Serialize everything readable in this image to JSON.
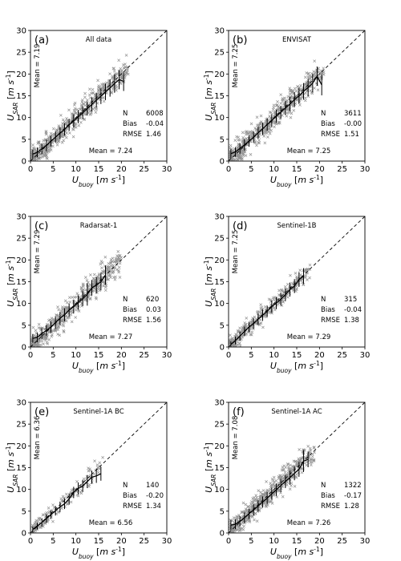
{
  "figure": {
    "x_axis_label": "U_buoy [m s^-1]",
    "y_axis_label": "U_SAR [m s^-1]",
    "x_ticks": [
      "0",
      "5",
      "10",
      "15",
      "20",
      "25",
      "30"
    ],
    "y_ticks": [
      "0",
      "5",
      "10",
      "15",
      "20",
      "25",
      "30"
    ],
    "colors": {
      "scatter": "#808080",
      "binned": "#000000",
      "identity": "#000000"
    }
  },
  "chart_data": [
    {
      "type": "scatter",
      "panel": "(a)",
      "title": "All data",
      "xlim": [
        0,
        30
      ],
      "ylim": [
        0,
        30
      ],
      "stats": {
        "n_label": "N",
        "n": "6008",
        "bias_label": "Bias",
        "bias": "-0.04",
        "rmse_label": "RMSE",
        "rmse": "1.46"
      },
      "mean_x_text": "Mean = 7.24",
      "mean_y_text": "Mean = 7.19",
      "scatter_extent": {
        "x_max": 21.5,
        "spread": 2.6
      },
      "binned": {
        "x": [
          0.5,
          1.5,
          2.5,
          3.5,
          4.5,
          5.5,
          6.5,
          7.5,
          8.5,
          9.5,
          10.5,
          11.5,
          12.5,
          13.5,
          14.5,
          15.5,
          16.5,
          17.5,
          18.5,
          19.5,
          20.5
        ],
        "y": [
          1.6,
          2.0,
          2.8,
          3.6,
          4.6,
          5.5,
          6.4,
          7.3,
          8.3,
          9.2,
          10.2,
          11.1,
          12.1,
          13.0,
          14.0,
          14.9,
          15.9,
          16.8,
          17.8,
          18.7,
          18.3
        ],
        "err": [
          1.0,
          1.1,
          1.2,
          1.3,
          1.3,
          1.3,
          1.4,
          1.4,
          1.4,
          1.5,
          1.5,
          1.5,
          1.6,
          1.6,
          1.7,
          1.8,
          1.9,
          2.0,
          2.1,
          2.2,
          2.2
        ]
      }
    },
    {
      "type": "scatter",
      "panel": "(b)",
      "title": "ENVISAT",
      "xlim": [
        0,
        30
      ],
      "ylim": [
        0,
        30
      ],
      "stats": {
        "n_label": "N",
        "n": "3611",
        "bias_label": "Bias",
        "bias": "-0.00",
        "rmse_label": "RMSE",
        "rmse": "1.51"
      },
      "mean_x_text": "Mean = 7.25",
      "mean_y_text": "Mean = 7.25",
      "scatter_extent": {
        "x_max": 21,
        "spread": 2.5
      },
      "binned": {
        "x": [
          0.5,
          1.5,
          2.5,
          3.5,
          4.5,
          5.5,
          6.5,
          7.5,
          8.5,
          9.5,
          10.5,
          11.5,
          12.5,
          13.5,
          14.5,
          15.5,
          16.5,
          17.5,
          18.5,
          19.5,
          20.5
        ],
        "y": [
          1.7,
          2.1,
          2.9,
          3.7,
          4.6,
          5.5,
          6.5,
          7.4,
          8.4,
          9.3,
          10.3,
          11.2,
          12.2,
          13.1,
          14.1,
          15.0,
          16.0,
          16.9,
          17.9,
          19.5,
          17.5
        ],
        "err": [
          1.1,
          1.1,
          1.2,
          1.3,
          1.3,
          1.3,
          1.4,
          1.4,
          1.4,
          1.5,
          1.5,
          1.5,
          1.6,
          1.6,
          1.7,
          1.8,
          1.9,
          2.0,
          2.1,
          2.2,
          2.4
        ]
      }
    },
    {
      "type": "scatter",
      "panel": "(c)",
      "title": "Radarsat-1",
      "xlim": [
        0,
        30
      ],
      "ylim": [
        0,
        30
      ],
      "stats": {
        "n_label": "N",
        "n": "620",
        "bias_label": "Bias",
        "bias": "0.03",
        "rmse_label": "RMSE",
        "rmse": "1.56"
      },
      "mean_x_text": "Mean = 7.27",
      "mean_y_text": "Mean = 7.29",
      "scatter_extent": {
        "x_max": 20,
        "spread": 2.4
      },
      "binned": {
        "x": [
          0.5,
          1.5,
          2.5,
          3.5,
          4.5,
          5.5,
          6.5,
          7.5,
          8.5,
          9.5,
          10.5,
          11.5,
          12.5,
          13.5,
          14.5,
          15.5,
          16.5
        ],
        "y": [
          2.0,
          2.2,
          3.1,
          3.8,
          4.6,
          5.6,
          6.6,
          7.4,
          8.5,
          9.3,
          10.2,
          11.1,
          12.1,
          13.6,
          14.2,
          15.0,
          16.5
        ],
        "err": [
          1.0,
          1.1,
          1.2,
          1.2,
          1.3,
          1.4,
          1.4,
          1.5,
          1.5,
          1.6,
          1.6,
          1.7,
          2.6,
          1.8,
          1.9,
          2.0,
          2.2
        ]
      }
    },
    {
      "type": "scatter",
      "panel": "(d)",
      "title": "Sentinel-1B",
      "xlim": [
        0,
        30
      ],
      "ylim": [
        0,
        30
      ],
      "stats": {
        "n_label": "N",
        "n": "315",
        "bias_label": "Bias",
        "bias": "-0.04",
        "rmse_label": "RMSE",
        "rmse": "1.38"
      },
      "mean_x_text": "Mean = 7.29",
      "mean_y_text": "Mean = 7.25",
      "scatter_extent": {
        "x_max": 18,
        "spread": 1.9
      },
      "binned": {
        "x": [
          0.5,
          1.5,
          2.5,
          3.5,
          4.5,
          5.5,
          6.5,
          7.5,
          8.5,
          9.5,
          10.5,
          11.5,
          12.5,
          13.5,
          14.5,
          15.5,
          16.5
        ],
        "y": [
          0.6,
          1.5,
          2.5,
          3.6,
          4.6,
          5.4,
          6.4,
          7.3,
          8.2,
          9.3,
          10.1,
          11.0,
          12.0,
          13.2,
          14.0,
          15.5,
          16.3
        ],
        "err": [
          0.7,
          0.9,
          1.0,
          1.1,
          1.2,
          1.2,
          1.3,
          1.3,
          1.3,
          1.4,
          1.4,
          1.5,
          1.5,
          1.6,
          1.6,
          1.7,
          1.8
        ]
      }
    },
    {
      "type": "scatter",
      "panel": "(e)",
      "title": "Sentinel-1A BC",
      "xlim": [
        0,
        30
      ],
      "ylim": [
        0,
        30
      ],
      "stats": {
        "n_label": "N",
        "n": "140",
        "bias_label": "Bias",
        "bias": "-0.20",
        "rmse_label": "RMSE",
        "rmse": "1.34"
      },
      "mean_x_text": "Mean = 6.56",
      "mean_y_text": "Mean = 6.36",
      "scatter_extent": {
        "x_max": 16,
        "spread": 1.8
      },
      "binned": {
        "x": [
          0.5,
          1.5,
          2.5,
          3.5,
          4.5,
          5.5,
          6.5,
          7.5,
          8.5,
          9.5,
          10.5,
          11.5,
          12.5,
          13.5,
          14.5,
          15.5
        ],
        "y": [
          0.8,
          1.6,
          2.4,
          3.3,
          4.2,
          5.1,
          6.0,
          6.7,
          7.8,
          9.3,
          10.2,
          10.8,
          11.8,
          12.8,
          13.1,
          13.6
        ],
        "err": [
          0.7,
          0.8,
          0.9,
          1.0,
          1.0,
          1.1,
          1.2,
          1.2,
          1.3,
          1.3,
          1.4,
          1.4,
          1.5,
          1.5,
          1.6,
          1.6
        ]
      }
    },
    {
      "type": "scatter",
      "panel": "(f)",
      "title": "Sentinel-1A AC",
      "xlim": [
        0,
        30
      ],
      "ylim": [
        0,
        30
      ],
      "stats": {
        "n_label": "N",
        "n": "1322",
        "bias_label": "Bias",
        "bias": "-0.17",
        "rmse_label": "RMSE",
        "rmse": "1.28"
      },
      "mean_x_text": "Mean = 7.26",
      "mean_y_text": "Mean = 7.08",
      "scatter_extent": {
        "x_max": 19,
        "spread": 2.3
      },
      "binned": {
        "x": [
          0.5,
          1.5,
          2.5,
          3.5,
          4.5,
          5.5,
          6.5,
          7.5,
          8.5,
          9.5,
          10.5,
          11.5,
          12.5,
          13.5,
          14.5,
          15.5,
          16.5,
          17.5
        ],
        "y": [
          1.8,
          2.0,
          2.7,
          3.5,
          4.4,
          5.3,
          6.2,
          7.1,
          8.0,
          9.0,
          9.9,
          10.9,
          11.8,
          12.7,
          13.7,
          14.6,
          16.5,
          16.9
        ],
        "err": [
          1.1,
          1.1,
          1.2,
          1.2,
          1.2,
          1.3,
          1.3,
          1.3,
          1.4,
          1.4,
          1.4,
          1.5,
          1.5,
          1.6,
          1.6,
          1.7,
          2.5,
          1.8
        ]
      }
    }
  ]
}
